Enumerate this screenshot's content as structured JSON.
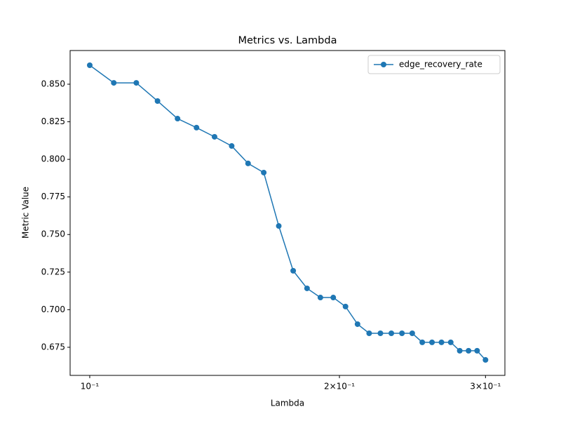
{
  "chart_data": {
    "type": "line",
    "title": "Metrics vs. Lambda",
    "xlabel": "Lambda",
    "ylabel": "Metric Value",
    "xscale": "log",
    "x": [
      0.1,
      0.1069,
      0.1138,
      0.1207,
      0.1276,
      0.1345,
      0.1414,
      0.1483,
      0.1552,
      0.1621,
      0.169,
      0.1759,
      0.1828,
      0.1897,
      0.1966,
      0.2034,
      0.2103,
      0.2172,
      0.2241,
      0.231,
      0.2379,
      0.2448,
      0.2517,
      0.2586,
      0.2655,
      0.2724,
      0.2793,
      0.2862,
      0.2931,
      0.3
    ],
    "series": [
      {
        "name": "edge_recovery_rate",
        "color": "#1f77b4",
        "values": [
          0.8626,
          0.8509,
          0.8509,
          0.8388,
          0.8271,
          0.8211,
          0.815,
          0.8089,
          0.7973,
          0.7912,
          0.7557,
          0.7259,
          0.7142,
          0.7081,
          0.7081,
          0.7021,
          0.6904,
          0.6843,
          0.6843,
          0.6843,
          0.6843,
          0.6843,
          0.6783,
          0.6783,
          0.6783,
          0.6783,
          0.6727,
          0.6727,
          0.6727,
          0.6666
        ]
      }
    ],
    "xlim": [
      0.0947,
      0.3166
    ],
    "xticks": [
      {
        "value": 0.1,
        "label": "10⁻¹"
      },
      {
        "value": 0.2,
        "label": "2×10⁻¹"
      },
      {
        "value": 0.3,
        "label": "3×10⁻¹"
      }
    ],
    "ylim": [
      0.6563,
      0.8724
    ],
    "yticks": [
      {
        "value": 0.675,
        "label": "0.675"
      },
      {
        "value": 0.7,
        "label": "0.700"
      },
      {
        "value": 0.725,
        "label": "0.725"
      },
      {
        "value": 0.75,
        "label": "0.750"
      },
      {
        "value": 0.775,
        "label": "0.775"
      },
      {
        "value": 0.8,
        "label": "0.800"
      },
      {
        "value": 0.825,
        "label": "0.825"
      },
      {
        "value": 0.85,
        "label": "0.850"
      }
    ],
    "legend": "upper-right"
  }
}
